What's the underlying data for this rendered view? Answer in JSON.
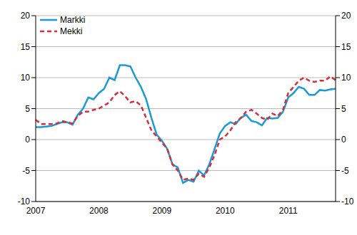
{
  "chart_data": {
    "type": "line",
    "categories": [
      "2007",
      null,
      null,
      null,
      null,
      null,
      null,
      null,
      null,
      null,
      null,
      null,
      "2008",
      null,
      null,
      null,
      null,
      null,
      null,
      null,
      null,
      null,
      null,
      null,
      "2009",
      null,
      null,
      null,
      null,
      null,
      null,
      null,
      null,
      null,
      null,
      null,
      "2010",
      null,
      null,
      null,
      null,
      null,
      null,
      null,
      null,
      null,
      null,
      null,
      "2011",
      null,
      null,
      null,
      null,
      null,
      null,
      null,
      null,
      null
    ],
    "series": [
      {
        "name": "Markki",
        "color": "#1c9ad6",
        "line_style": "solid",
        "values": [
          2.0,
          2.0,
          2.1,
          2.2,
          2.5,
          2.8,
          2.8,
          2.4,
          4.0,
          5.0,
          6.8,
          6.5,
          7.5,
          8.2,
          10.0,
          9.6,
          12.0,
          12.0,
          11.8,
          10.0,
          8.5,
          6.5,
          3.5,
          0.8,
          -0.2,
          -1.5,
          -4.0,
          -4.5,
          -7.0,
          -6.5,
          -6.8,
          -5.0,
          -5.8,
          -4.0,
          -1.5,
          1.0,
          2.2,
          2.8,
          2.5,
          3.5,
          4.0,
          3.0,
          2.8,
          2.3,
          3.5,
          3.4,
          3.5,
          4.5,
          6.8,
          7.5,
          8.5,
          8.2,
          7.2,
          7.2,
          8.0,
          7.9,
          8.1,
          8.2
        ]
      },
      {
        "name": "Mekki",
        "color": "#d62f3a",
        "line_style": "dashed",
        "values": [
          3.2,
          2.5,
          2.5,
          2.5,
          2.6,
          3.0,
          2.8,
          2.6,
          3.8,
          4.5,
          4.5,
          4.8,
          5.0,
          5.5,
          6.0,
          7.2,
          7.8,
          7.0,
          6.0,
          6.2,
          5.5,
          3.5,
          1.5,
          0.5,
          -0.5,
          -1.5,
          -4.0,
          -5.0,
          -6.5,
          -6.3,
          -6.5,
          -5.5,
          -6.0,
          -4.5,
          -2.5,
          0.0,
          0.5,
          1.5,
          2.8,
          3.5,
          4.5,
          4.8,
          4.2,
          3.5,
          3.2,
          4.2,
          3.8,
          4.8,
          7.5,
          8.5,
          9.5,
          10.0,
          9.5,
          9.3,
          9.5,
          9.5,
          10.2,
          9.6
        ]
      }
    ],
    "ylim": [
      -10,
      20
    ],
    "yticks": [
      -10,
      -5,
      0,
      5,
      10,
      15,
      20
    ],
    "grid": true,
    "legend": "upper left"
  }
}
